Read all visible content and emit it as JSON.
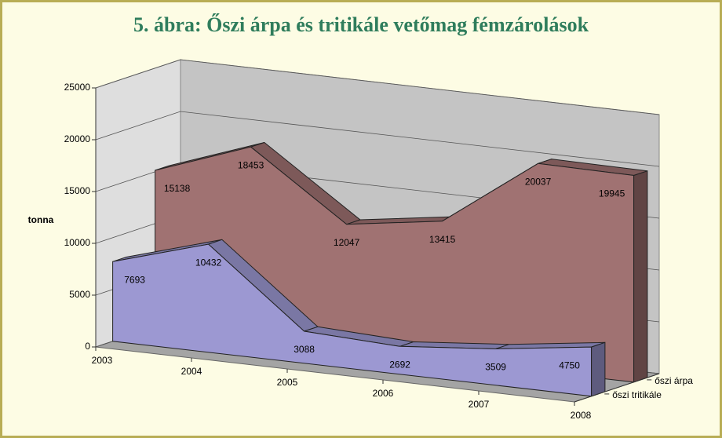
{
  "chart_data": {
    "type": "area3d",
    "title": "5. ábra:  Őszi árpa és tritikále vetőmag fémzárolások",
    "ylabel": "tonna",
    "categories": [
      "2003",
      "2004",
      "2005",
      "2006",
      "2007",
      "2008"
    ],
    "series": [
      {
        "name": "őszi árpa",
        "color": "#a07272",
        "values": [
          15138,
          18453,
          12047,
          13415,
          20037,
          19945
        ]
      },
      {
        "name": "őszi tritikále",
        "color": "#9c98d2",
        "values": [
          7693,
          10432,
          3088,
          2692,
          3509,
          4750
        ]
      }
    ],
    "ylim": [
      0,
      25000
    ],
    "yticks": [
      0,
      5000,
      10000,
      15000,
      20000,
      25000
    ],
    "grid": true
  }
}
